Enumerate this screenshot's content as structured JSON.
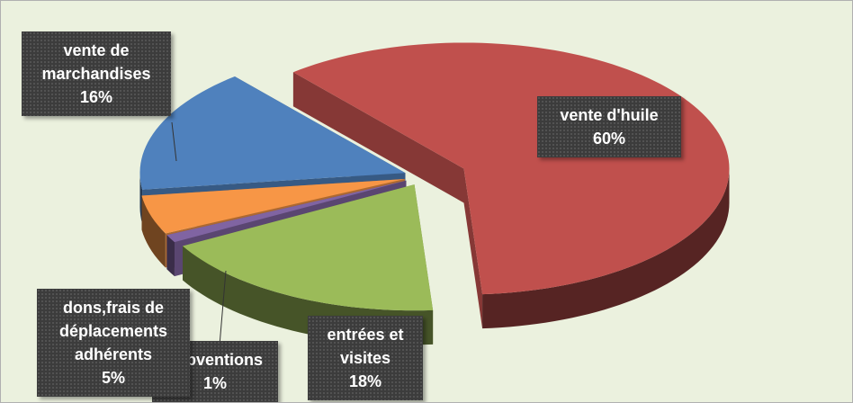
{
  "chart_data": {
    "type": "pie3d",
    "categories": [
      "vente d'huile",
      "entrées et visites",
      "subventions",
      "dons,frais de déplacements adhérents",
      "vente de marchandises"
    ],
    "values": [
      60,
      18,
      1,
      5,
      16
    ],
    "value_labels": [
      "60%",
      "18%",
      "1%",
      "5%",
      "16%"
    ],
    "colors": [
      "#c0504d",
      "#9bbb59",
      "#8064a2",
      "#f79646",
      "#4f81bd"
    ]
  }
}
